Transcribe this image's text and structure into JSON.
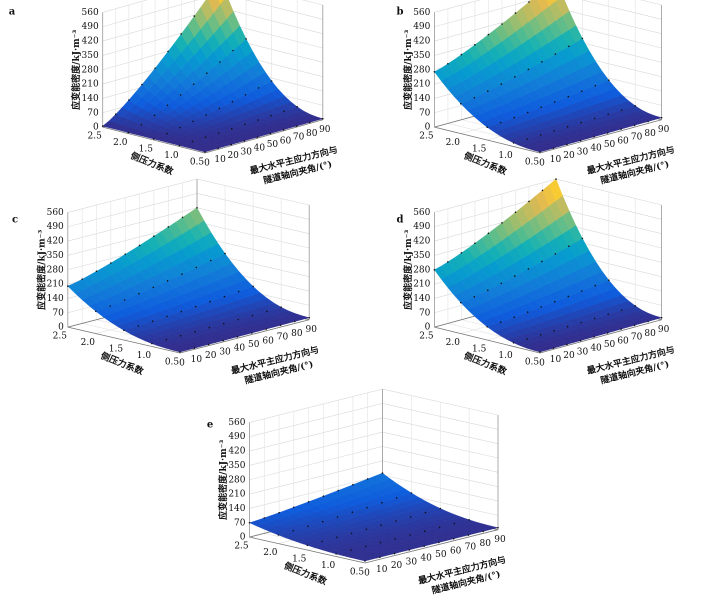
{
  "figure": {
    "z_ticks": [
      "0",
      "70",
      "140",
      "210",
      "280",
      "350",
      "420",
      "490",
      "560"
    ],
    "angle_ticks": [
      "0",
      "10",
      "20",
      "30",
      "40",
      "50",
      "60",
      "70",
      "80",
      "90"
    ],
    "k_ticks": [
      "0.5",
      "1.0",
      "1.5",
      "2.0",
      "2.5"
    ]
  },
  "chart_data": [
    {
      "panel": "a",
      "type": "surface",
      "zlabel": "应变能密度/kJ·m⁻³",
      "xlabel_line1": "最大水平主应力方向与",
      "xlabel_line2": "隧道轴向夹角/(°)",
      "ylabel": "侧压力系数",
      "zlim": [
        0,
        560
      ],
      "angles": [
        0,
        10,
        20,
        30,
        40,
        50,
        60,
        70,
        80,
        90
      ],
      "lateral_coefficients": [
        0.5,
        1.0,
        1.5,
        2.0,
        2.5
      ],
      "corner_values": {
        "k0.5_a0": 5,
        "k0.5_a90": 5,
        "k2.5_a0": 5,
        "k2.5_a90": 560
      },
      "k_exponent": 2.2,
      "angle_exponent": 1.2
    },
    {
      "panel": "b",
      "type": "surface",
      "zlabel": "应变能密度/kJ·m⁻³",
      "xlabel_line1": "最大水平主应力方向与",
      "xlabel_line2": "隧道轴向夹角/(°)",
      "ylabel": "侧压力系数",
      "zlim": [
        0,
        560
      ],
      "angles": [
        0,
        10,
        20,
        30,
        40,
        50,
        60,
        70,
        80,
        90
      ],
      "lateral_coefficients": [
        0.5,
        1.0,
        1.5,
        2.0,
        2.5
      ],
      "corner_values": {
        "k0.5_a0": 5,
        "k0.5_a90": 10,
        "k2.5_a0": 270,
        "k2.5_a90": 560
      },
      "k_exponent": 2.2,
      "angle_exponent": 1.2
    },
    {
      "panel": "c",
      "type": "surface",
      "zlabel": "应变能密度/kJ·m⁻³",
      "xlabel_line1": "最大水平主应力方向与",
      "xlabel_line2": "隧道轴向夹角/(°)",
      "ylabel": "侧压力系数",
      "zlim": [
        0,
        560
      ],
      "angles": [
        0,
        10,
        20,
        30,
        40,
        50,
        60,
        70,
        80,
        90
      ],
      "lateral_coefficients": [
        0.5,
        1.0,
        1.5,
        2.0,
        2.5
      ],
      "corner_values": {
        "k0.5_a0": 5,
        "k0.5_a90": 10,
        "k2.5_a0": 200,
        "k2.5_a90": 420
      },
      "k_exponent": 2.2,
      "angle_exponent": 1.2
    },
    {
      "panel": "d",
      "type": "surface",
      "zlabel": "应变能密度/kJ·m⁻³",
      "xlabel_line1": "最大水平主应力方向与",
      "xlabel_line2": "隧道轴向夹角/(°)",
      "ylabel": "侧压力系数",
      "zlim": [
        0,
        560
      ],
      "angles": [
        0,
        10,
        20,
        30,
        40,
        50,
        60,
        70,
        80,
        90
      ],
      "lateral_coefficients": [
        0.5,
        1.0,
        1.5,
        2.0,
        2.5
      ],
      "corner_values": {
        "k0.5_a0": 5,
        "k0.5_a90": 10,
        "k2.5_a0": 280,
        "k2.5_a90": 560
      },
      "k_exponent": 2.2,
      "angle_exponent": 1.2
    },
    {
      "panel": "e",
      "type": "surface",
      "zlabel": "应变能密度/kJ·m⁻³",
      "xlabel_line1": "最大水平主应力方向与",
      "xlabel_line2": "隧道轴向夹角/(°)",
      "ylabel": "侧压力系数",
      "zlim": [
        0,
        560
      ],
      "angles": [
        0,
        10,
        20,
        30,
        40,
        50,
        60,
        70,
        80,
        90
      ],
      "lateral_coefficients": [
        0.5,
        1.0,
        1.5,
        2.0,
        2.5
      ],
      "corner_values": {
        "k0.5_a0": 10,
        "k0.5_a90": 10,
        "k2.5_a0": 70,
        "k2.5_a90": 150
      },
      "k_exponent": 2.2,
      "angle_exponent": 1.2
    }
  ]
}
